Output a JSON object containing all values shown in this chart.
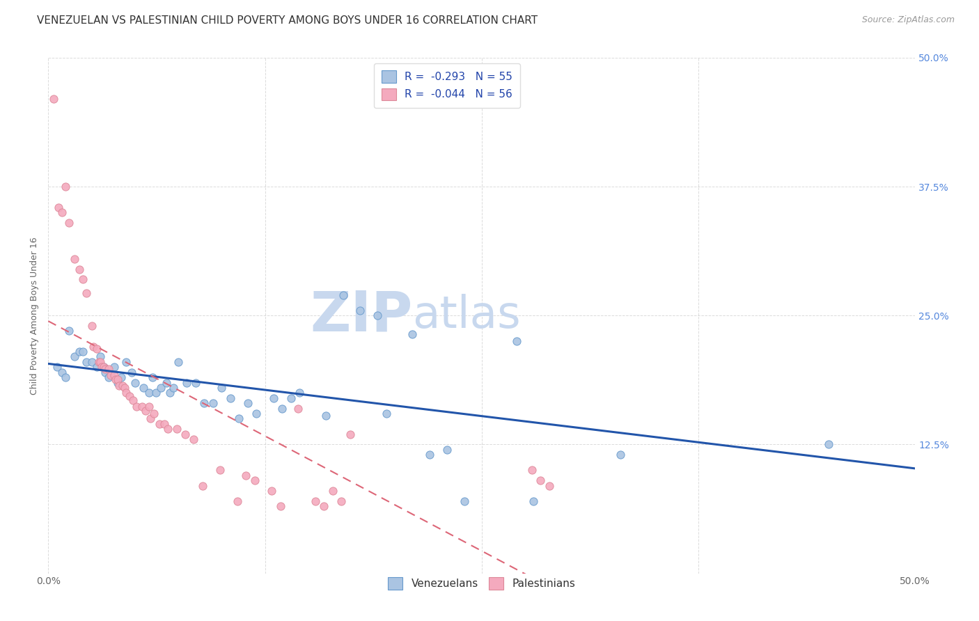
{
  "title": "VENEZUELAN VS PALESTINIAN CHILD POVERTY AMONG BOYS UNDER 16 CORRELATION CHART",
  "source": "Source: ZipAtlas.com",
  "ylabel": "Child Poverty Among Boys Under 16",
  "xlim": [
    0.0,
    0.5
  ],
  "ylim": [
    0.0,
    0.5
  ],
  "xticks": [
    0.0,
    0.125,
    0.25,
    0.375,
    0.5
  ],
  "yticks": [
    0.0,
    0.125,
    0.25,
    0.375,
    0.5
  ],
  "xtick_labels": [
    "0.0%",
    "",
    "",
    "",
    "50.0%"
  ],
  "ytick_labels_right": [
    "",
    "12.5%",
    "25.0%",
    "37.5%",
    "50.0%"
  ],
  "watermark_zip": "ZIP",
  "watermark_atlas": "atlas",
  "venezuelan_color": "#aac4e2",
  "venezuelan_edge_color": "#6699cc",
  "palestinian_color": "#f4aabe",
  "palestinian_edge_color": "#dd8899",
  "venezuelan_line_color": "#2255aa",
  "palestinian_line_color": "#dd6677",
  "venezuelan_scatter": [
    [
      0.005,
      0.2
    ],
    [
      0.008,
      0.195
    ],
    [
      0.01,
      0.19
    ],
    [
      0.012,
      0.235
    ],
    [
      0.015,
      0.21
    ],
    [
      0.018,
      0.215
    ],
    [
      0.02,
      0.215
    ],
    [
      0.022,
      0.205
    ],
    [
      0.025,
      0.205
    ],
    [
      0.028,
      0.2
    ],
    [
      0.03,
      0.21
    ],
    [
      0.032,
      0.2
    ],
    [
      0.033,
      0.195
    ],
    [
      0.035,
      0.19
    ],
    [
      0.038,
      0.2
    ],
    [
      0.04,
      0.185
    ],
    [
      0.042,
      0.19
    ],
    [
      0.045,
      0.205
    ],
    [
      0.048,
      0.195
    ],
    [
      0.05,
      0.185
    ],
    [
      0.055,
      0.18
    ],
    [
      0.058,
      0.175
    ],
    [
      0.06,
      0.19
    ],
    [
      0.062,
      0.175
    ],
    [
      0.065,
      0.18
    ],
    [
      0.068,
      0.185
    ],
    [
      0.07,
      0.175
    ],
    [
      0.072,
      0.18
    ],
    [
      0.075,
      0.205
    ],
    [
      0.08,
      0.185
    ],
    [
      0.085,
      0.185
    ],
    [
      0.09,
      0.165
    ],
    [
      0.095,
      0.165
    ],
    [
      0.1,
      0.18
    ],
    [
      0.105,
      0.17
    ],
    [
      0.11,
      0.15
    ],
    [
      0.115,
      0.165
    ],
    [
      0.12,
      0.155
    ],
    [
      0.13,
      0.17
    ],
    [
      0.135,
      0.16
    ],
    [
      0.14,
      0.17
    ],
    [
      0.145,
      0.175
    ],
    [
      0.16,
      0.153
    ],
    [
      0.17,
      0.27
    ],
    [
      0.18,
      0.255
    ],
    [
      0.19,
      0.25
    ],
    [
      0.195,
      0.155
    ],
    [
      0.21,
      0.232
    ],
    [
      0.22,
      0.115
    ],
    [
      0.23,
      0.12
    ],
    [
      0.24,
      0.07
    ],
    [
      0.27,
      0.225
    ],
    [
      0.28,
      0.07
    ],
    [
      0.33,
      0.115
    ],
    [
      0.45,
      0.125
    ]
  ],
  "palestinian_scatter": [
    [
      0.003,
      0.46
    ],
    [
      0.006,
      0.355
    ],
    [
      0.008,
      0.35
    ],
    [
      0.01,
      0.375
    ],
    [
      0.012,
      0.34
    ],
    [
      0.015,
      0.305
    ],
    [
      0.018,
      0.295
    ],
    [
      0.02,
      0.285
    ],
    [
      0.022,
      0.272
    ],
    [
      0.025,
      0.24
    ],
    [
      0.026,
      0.22
    ],
    [
      0.028,
      0.218
    ],
    [
      0.029,
      0.205
    ],
    [
      0.03,
      0.205
    ],
    [
      0.031,
      0.2
    ],
    [
      0.032,
      0.2
    ],
    [
      0.033,
      0.198
    ],
    [
      0.035,
      0.198
    ],
    [
      0.036,
      0.192
    ],
    [
      0.038,
      0.192
    ],
    [
      0.039,
      0.188
    ],
    [
      0.04,
      0.188
    ],
    [
      0.041,
      0.182
    ],
    [
      0.043,
      0.182
    ],
    [
      0.044,
      0.18
    ],
    [
      0.045,
      0.175
    ],
    [
      0.047,
      0.172
    ],
    [
      0.049,
      0.168
    ],
    [
      0.051,
      0.162
    ],
    [
      0.054,
      0.162
    ],
    [
      0.056,
      0.158
    ],
    [
      0.058,
      0.162
    ],
    [
      0.059,
      0.15
    ],
    [
      0.061,
      0.155
    ],
    [
      0.064,
      0.145
    ],
    [
      0.067,
      0.145
    ],
    [
      0.069,
      0.14
    ],
    [
      0.074,
      0.14
    ],
    [
      0.079,
      0.135
    ],
    [
      0.084,
      0.13
    ],
    [
      0.089,
      0.085
    ],
    [
      0.099,
      0.1
    ],
    [
      0.109,
      0.07
    ],
    [
      0.114,
      0.095
    ],
    [
      0.119,
      0.09
    ],
    [
      0.129,
      0.08
    ],
    [
      0.134,
      0.065
    ],
    [
      0.144,
      0.16
    ],
    [
      0.154,
      0.07
    ],
    [
      0.159,
      0.065
    ],
    [
      0.164,
      0.08
    ],
    [
      0.169,
      0.07
    ],
    [
      0.174,
      0.135
    ],
    [
      0.279,
      0.1
    ],
    [
      0.284,
      0.09
    ],
    [
      0.289,
      0.085
    ]
  ],
  "background_color": "#ffffff",
  "grid_color": "#cccccc",
  "title_fontsize": 11,
  "axis_label_fontsize": 9,
  "tick_fontsize": 10,
  "right_tick_color": "#5588dd",
  "watermark_zip_color": "#c8d8ee",
  "watermark_atlas_color": "#c8d8ee",
  "watermark_fontsize": 58
}
